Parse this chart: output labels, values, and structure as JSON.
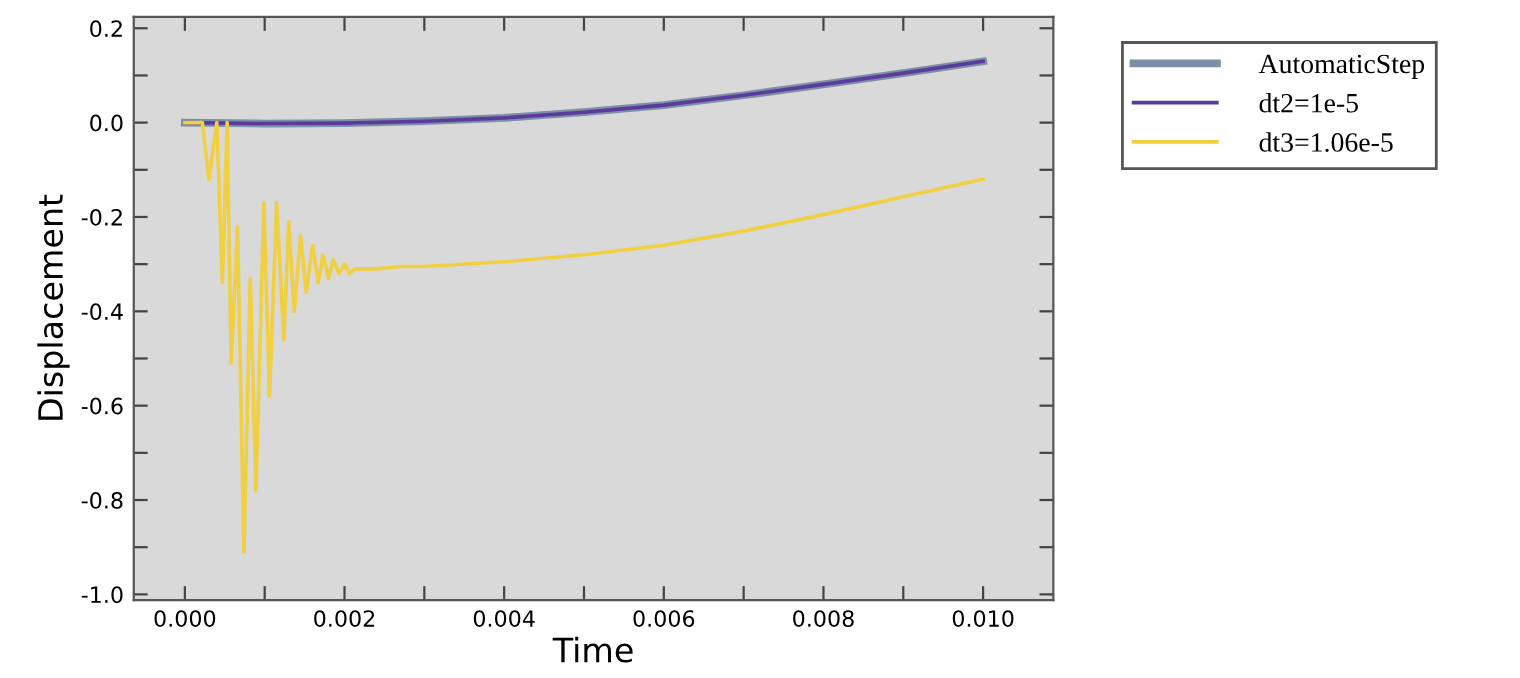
{
  "chart_data": {
    "type": "line",
    "xlabel": "Time",
    "ylabel": "Displacement",
    "xlim": [
      -0.00064,
      0.01088
    ],
    "ylim": [
      -1.012,
      0.224
    ],
    "xticks": [
      {
        "value": 0,
        "label": "0.000"
      },
      {
        "value": 0.001,
        "label": null
      },
      {
        "value": 0.002,
        "label": "0.002"
      },
      {
        "value": 0.003,
        "label": null
      },
      {
        "value": 0.004,
        "label": "0.004"
      },
      {
        "value": 0.005,
        "label": null
      },
      {
        "value": 0.006,
        "label": "0.006"
      },
      {
        "value": 0.007,
        "label": null
      },
      {
        "value": 0.008,
        "label": "0.008"
      },
      {
        "value": 0.009,
        "label": null
      },
      {
        "value": 0.01,
        "label": "0.010"
      }
    ],
    "yticks": [
      {
        "value": -1.0,
        "label": "-1.0"
      },
      {
        "value": -0.9,
        "label": null
      },
      {
        "value": -0.8,
        "label": "-0.8"
      },
      {
        "value": -0.7,
        "label": null
      },
      {
        "value": -0.6,
        "label": "-0.6"
      },
      {
        "value": -0.5,
        "label": null
      },
      {
        "value": -0.4,
        "label": "-0.4"
      },
      {
        "value": -0.3,
        "label": null
      },
      {
        "value": -0.2,
        "label": "-0.2"
      },
      {
        "value": -0.1,
        "label": null
      },
      {
        "value": 0.0,
        "label": "0.0"
      },
      {
        "value": 0.1,
        "label": null
      },
      {
        "value": 0.2,
        "label": "0.2"
      }
    ],
    "grid": false,
    "legend": "top right",
    "marker": "none",
    "line_style": "solid",
    "series": [
      {
        "name": "AutomaticStep",
        "color": "#7b8fa6",
        "x": [
          0,
          0.001,
          0.002,
          0.003,
          0.004,
          0.005,
          0.006,
          0.007,
          0.008,
          0.009,
          0.01
        ],
        "values": [
          0,
          -0.002,
          -0.001,
          0.003,
          0.01,
          0.022,
          0.037,
          0.058,
          0.081,
          0.105,
          0.13
        ]
      },
      {
        "name": "dt2=1e-5",
        "color": "#5b3a9e",
        "x": [
          0,
          0.001,
          0.002,
          0.003,
          0.004,
          0.005,
          0.006,
          0.007,
          0.008,
          0.009,
          0.01
        ],
        "values": [
          0,
          -0.002,
          -0.001,
          0.003,
          0.01,
          0.022,
          0.037,
          0.058,
          0.081,
          0.105,
          0.13
        ]
      },
      {
        "name": "dt3=1.06e-5",
        "color": "#f0d040",
        "x": [
          0,
          0.00022,
          0.0003,
          0.0004,
          0.00047,
          0.00053,
          0.00058,
          0.00066,
          0.00074,
          0.00082,
          0.00089,
          0.00099,
          0.00106,
          0.00115,
          0.00124,
          0.0013,
          0.00137,
          0.00145,
          0.00152,
          0.0016,
          0.00167,
          0.00173,
          0.0018,
          0.00186,
          0.00193,
          0.002,
          0.00206,
          0.00213,
          0.0022,
          0.00228,
          0.0024,
          0.0027,
          0.003,
          0.004,
          0.005,
          0.006,
          0.007,
          0.008,
          0.009,
          0.01
        ],
        "values": [
          0,
          0,
          -0.12,
          0,
          -0.34,
          0,
          -0.51,
          -0.22,
          -0.91,
          -0.33,
          -0.78,
          -0.17,
          -0.58,
          -0.17,
          -0.46,
          -0.21,
          -0.4,
          -0.24,
          -0.36,
          -0.26,
          -0.34,
          -0.28,
          -0.33,
          -0.29,
          -0.32,
          -0.3,
          -0.32,
          -0.31,
          -0.31,
          -0.31,
          -0.31,
          -0.305,
          -0.305,
          -0.295,
          -0.28,
          -0.26,
          -0.23,
          -0.195,
          -0.157,
          -0.12
        ]
      }
    ]
  }
}
